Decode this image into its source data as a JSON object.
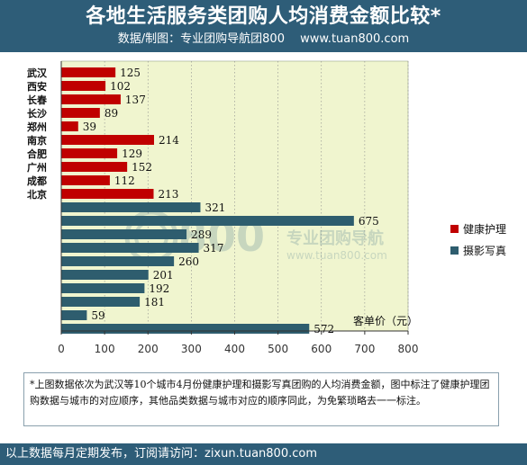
{
  "header": {
    "title": "各地生活服务类团购人均消费金额比较*",
    "subtitle": "数据/制图：专业团购导航团800　 www.tuan800.com"
  },
  "watermark": {
    "logo_text": "800",
    "brand_text": "专业团购导航",
    "url_text": "www.tuan800.com"
  },
  "chart_data": {
    "type": "bar",
    "orientation": "horizontal",
    "categories": [
      "武汉",
      "西安",
      "长春",
      "长沙",
      "郑州",
      "南京",
      "合肥",
      "广州",
      "成都",
      "北京"
    ],
    "series": [
      {
        "name": "健康护理",
        "color": "#c00000",
        "values": [
          125,
          102,
          137,
          89,
          39,
          214,
          129,
          152,
          112,
          213
        ]
      },
      {
        "name": "摄影写真",
        "color": "#2e5d6e",
        "values": [
          321,
          675,
          289,
          317,
          260,
          201,
          192,
          181,
          59,
          572
        ]
      }
    ],
    "xlim": [
      0,
      800
    ],
    "xticks": [
      0,
      100,
      200,
      300,
      400,
      500,
      600,
      700,
      800
    ],
    "unit_label": "客单价（元）",
    "grid": true,
    "plot_background": "#f0f5cf",
    "legend_position": "right"
  },
  "note": "*上图数据依次为武汉等10个城市4月份健康护理和摄影写真团购的人均消费金额，图中标注了健康护理团购数据与城市的对应顺序，其他品类数据与城市对应的顺序同此，为免繁琐略去一一标注。",
  "footer": "以上数据每月定期发布，订阅请访问：zixun.tuan800.com"
}
